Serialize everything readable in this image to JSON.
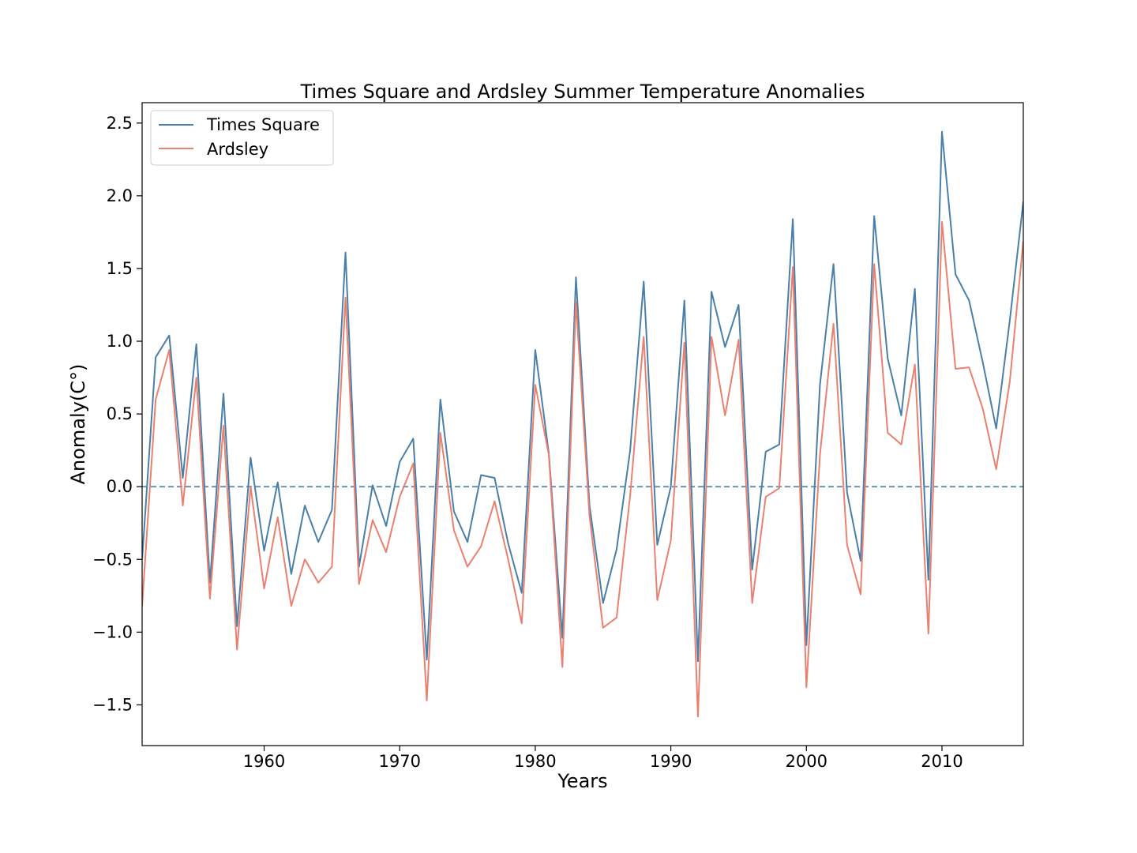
{
  "chart_data": {
    "type": "line",
    "title": "Times Square and Ardsley Summer Temperature Anomalies",
    "xlabel": "Years",
    "ylabel": "Anomaly(C°)",
    "xlim": [
      1951,
      2016
    ],
    "ylim": [
      -1.78,
      2.64
    ],
    "x_ticks": [
      1960,
      1970,
      1980,
      1990,
      2000,
      2010
    ],
    "y_ticks": [
      -1.5,
      -1.0,
      -0.5,
      0.0,
      0.5,
      1.0,
      1.5,
      2.0,
      2.5
    ],
    "y_tick_labels": [
      "−1.5",
      "−1.0",
      "−0.5",
      "0.0",
      "0.5",
      "1.0",
      "1.5",
      "2.0",
      "2.5"
    ],
    "grid": false,
    "legend_placement": "top-left",
    "reference_line": {
      "y": 0.0,
      "style": "dashed",
      "color": "#5b8fad"
    },
    "x": [
      1951,
      1952,
      1953,
      1954,
      1955,
      1956,
      1957,
      1958,
      1959,
      1960,
      1961,
      1962,
      1963,
      1964,
      1965,
      1966,
      1967,
      1968,
      1969,
      1970,
      1971,
      1972,
      1973,
      1974,
      1975,
      1976,
      1977,
      1978,
      1979,
      1980,
      1981,
      1982,
      1983,
      1984,
      1985,
      1986,
      1987,
      1988,
      1989,
      1990,
      1991,
      1992,
      1993,
      1994,
      1995,
      1996,
      1997,
      1998,
      1999,
      2000,
      2001,
      2002,
      2003,
      2004,
      2005,
      2006,
      2007,
      2008,
      2009,
      2010,
      2011,
      2012,
      2013,
      2014,
      2015,
      2016
    ],
    "series": [
      {
        "name": "Times Square",
        "color": "#4a7faa",
        "values": [
          -0.5,
          0.89,
          1.04,
          0.06,
          0.98,
          -0.66,
          0.64,
          -0.96,
          0.2,
          -0.44,
          0.03,
          -0.6,
          -0.13,
          -0.38,
          -0.16,
          1.61,
          -0.55,
          0.01,
          -0.27,
          0.17,
          0.33,
          -1.19,
          0.6,
          -0.17,
          -0.38,
          0.08,
          0.06,
          -0.39,
          -0.73,
          0.94,
          0.23,
          -1.04,
          1.44,
          -0.13,
          -0.8,
          -0.43,
          0.25,
          1.41,
          -0.4,
          0.0,
          1.28,
          -1.2,
          1.34,
          0.96,
          1.25,
          -0.57,
          0.24,
          0.29,
          1.84,
          -1.09,
          0.7,
          1.53,
          -0.04,
          -0.51,
          1.86,
          0.88,
          0.49,
          1.36,
          -0.64,
          2.44,
          1.46,
          1.28,
          0.86,
          0.4,
          1.14,
          1.96
        ]
      },
      {
        "name": "Ardsley",
        "color": "#ea8070",
        "values": [
          -0.82,
          0.6,
          0.94,
          -0.13,
          0.75,
          -0.77,
          0.42,
          -1.12,
          0.0,
          -0.7,
          -0.21,
          -0.82,
          -0.5,
          -0.66,
          -0.55,
          1.3,
          -0.67,
          -0.23,
          -0.45,
          -0.07,
          0.16,
          -1.47,
          0.37,
          -0.3,
          -0.55,
          -0.41,
          -0.1,
          -0.5,
          -0.94,
          0.7,
          0.22,
          -1.24,
          1.27,
          -0.2,
          -0.97,
          -0.9,
          -0.06,
          1.03,
          -0.78,
          -0.37,
          0.99,
          -1.58,
          1.03,
          0.49,
          1.01,
          -0.8,
          -0.07,
          -0.01,
          1.51,
          -1.38,
          0.22,
          1.12,
          -0.4,
          -0.74,
          1.53,
          0.37,
          0.29,
          0.84,
          -1.01,
          1.82,
          0.81,
          0.82,
          0.54,
          0.12,
          0.72,
          1.69
        ]
      }
    ]
  }
}
